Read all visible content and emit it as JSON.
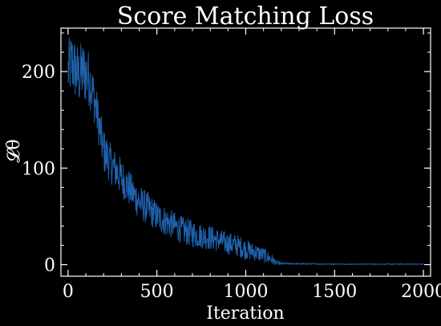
{
  "chart_data": {
    "type": "line",
    "title": "Score Matching Loss",
    "xlabel": "Iteration",
    "ylabel": "𝓛θ",
    "xlim": [
      -40,
      2040
    ],
    "ylim": [
      -12,
      245
    ],
    "xticks": [
      0,
      500,
      1000,
      1500,
      2000
    ],
    "yticks": [
      0,
      100,
      200
    ],
    "grid": false,
    "series": [
      {
        "color": "#1f62ad",
        "x": [
          0,
          20,
          40,
          60,
          80,
          100,
          120,
          140,
          160,
          180,
          200,
          240,
          280,
          320,
          360,
          400,
          450,
          500,
          550,
          600,
          650,
          700,
          750,
          800,
          850,
          900,
          950,
          1000,
          1050,
          1100,
          1150,
          1170,
          1200,
          1250,
          1300,
          1400,
          1500,
          1600,
          1700,
          1800,
          1900,
          2000
        ],
        "values": [
          200,
          210,
          202,
          195,
          200,
          198,
          192,
          178,
          160,
          138,
          118,
          105,
          95,
          85,
          75,
          65,
          58,
          50,
          45,
          40,
          35,
          32,
          30,
          28,
          25,
          22,
          20,
          16,
          13,
          10,
          5,
          2,
          1,
          1,
          0.8,
          0.7,
          0.6,
          0.5,
          0.5,
          0.5,
          0.5,
          0.5
        ],
        "noise": [
          25,
          25,
          25,
          25,
          25,
          25,
          22,
          20,
          18,
          18,
          18,
          16,
          16,
          15,
          14,
          14,
          13,
          12,
          12,
          11,
          11,
          11,
          10,
          10,
          9,
          9,
          9,
          8,
          7,
          6,
          4,
          2,
          1,
          0.6,
          0.5,
          0.4,
          0.3,
          0.3,
          0.3,
          0.3,
          0.3,
          0.3
        ]
      }
    ]
  }
}
